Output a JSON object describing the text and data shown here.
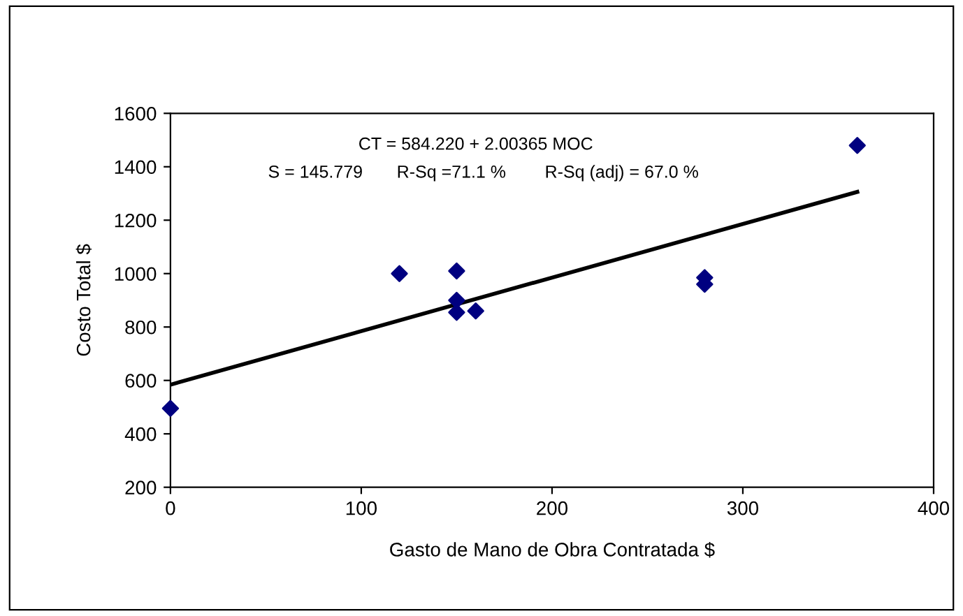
{
  "chart_data": {
    "type": "scatter",
    "xlabel": "Gasto de Mano de Obra Contratada $",
    "ylabel": "Costo Total $",
    "series": [
      {
        "color": "#000080",
        "marker": "diamond",
        "x": [
          0,
          120,
          150,
          150,
          150,
          160,
          280,
          280,
          360
        ],
        "values": [
          495,
          1000,
          1010,
          900,
          855,
          860,
          985,
          960,
          1480
        ]
      },
      {
        "type": "line",
        "color": "#000000",
        "marker": "none",
        "line_style": "solid",
        "x": [
          0,
          360
        ],
        "values": [
          584,
          1306
        ]
      }
    ],
    "annotations": [
      "CT = 584.220 + 2.00365 MOC",
      "S = 145.779       R-Sq =71.1 %        R-Sq (adj) = 67.0 %"
    ],
    "xlim": [
      0,
      400
    ],
    "xticks": [
      0,
      100,
      200,
      300,
      400
    ],
    "ylim": [
      200,
      1600
    ],
    "yticks": [
      200,
      400,
      600,
      800,
      1000,
      1200,
      1400,
      1600
    ],
    "grid": false,
    "legend": false
  }
}
